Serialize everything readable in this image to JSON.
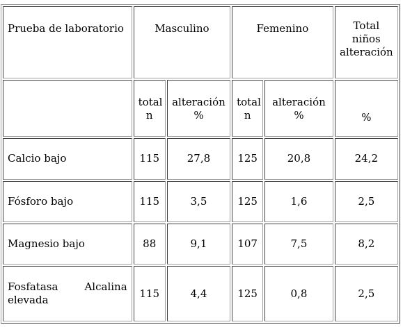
{
  "table": {
    "header": {
      "test_label": "Prueba de laboratorio",
      "male_label": "Masculino",
      "female_label": "Femenino",
      "total_line1": "Total",
      "total_line2": "niños",
      "total_line3": "alteración"
    },
    "subheader": {
      "male_n_line1": "total",
      "male_n_line2": "n",
      "male_pct_line1": "alteración",
      "male_pct_line2": "%",
      "female_n_line1": "total",
      "female_n_line2": "n",
      "female_pct_line1": "alteración",
      "female_pct_line2": "%",
      "total_pct": "%"
    },
    "rows": [
      {
        "test": "Calcio bajo",
        "male_n": "115",
        "male_pct": "27,8",
        "female_n": "125",
        "female_pct": "20,8",
        "total_pct": "24,2"
      },
      {
        "test": "Fósforo bajo",
        "male_n": "115",
        "male_pct": "3,5",
        "female_n": "125",
        "female_pct": "1,6",
        "total_pct": "2,5"
      },
      {
        "test": "Magnesio bajo",
        "male_n": "88",
        "male_pct": "9,1",
        "female_n": "107",
        "female_pct": "7,5",
        "total_pct": "8,2"
      }
    ],
    "last_row": {
      "test_word1": "Fosfatasa",
      "test_word2": "Alcalina",
      "test_word3": "elevada",
      "male_n": "115",
      "male_pct": "4,4",
      "female_n": "125",
      "female_pct": "0,8",
      "total_pct": "2,5"
    }
  }
}
